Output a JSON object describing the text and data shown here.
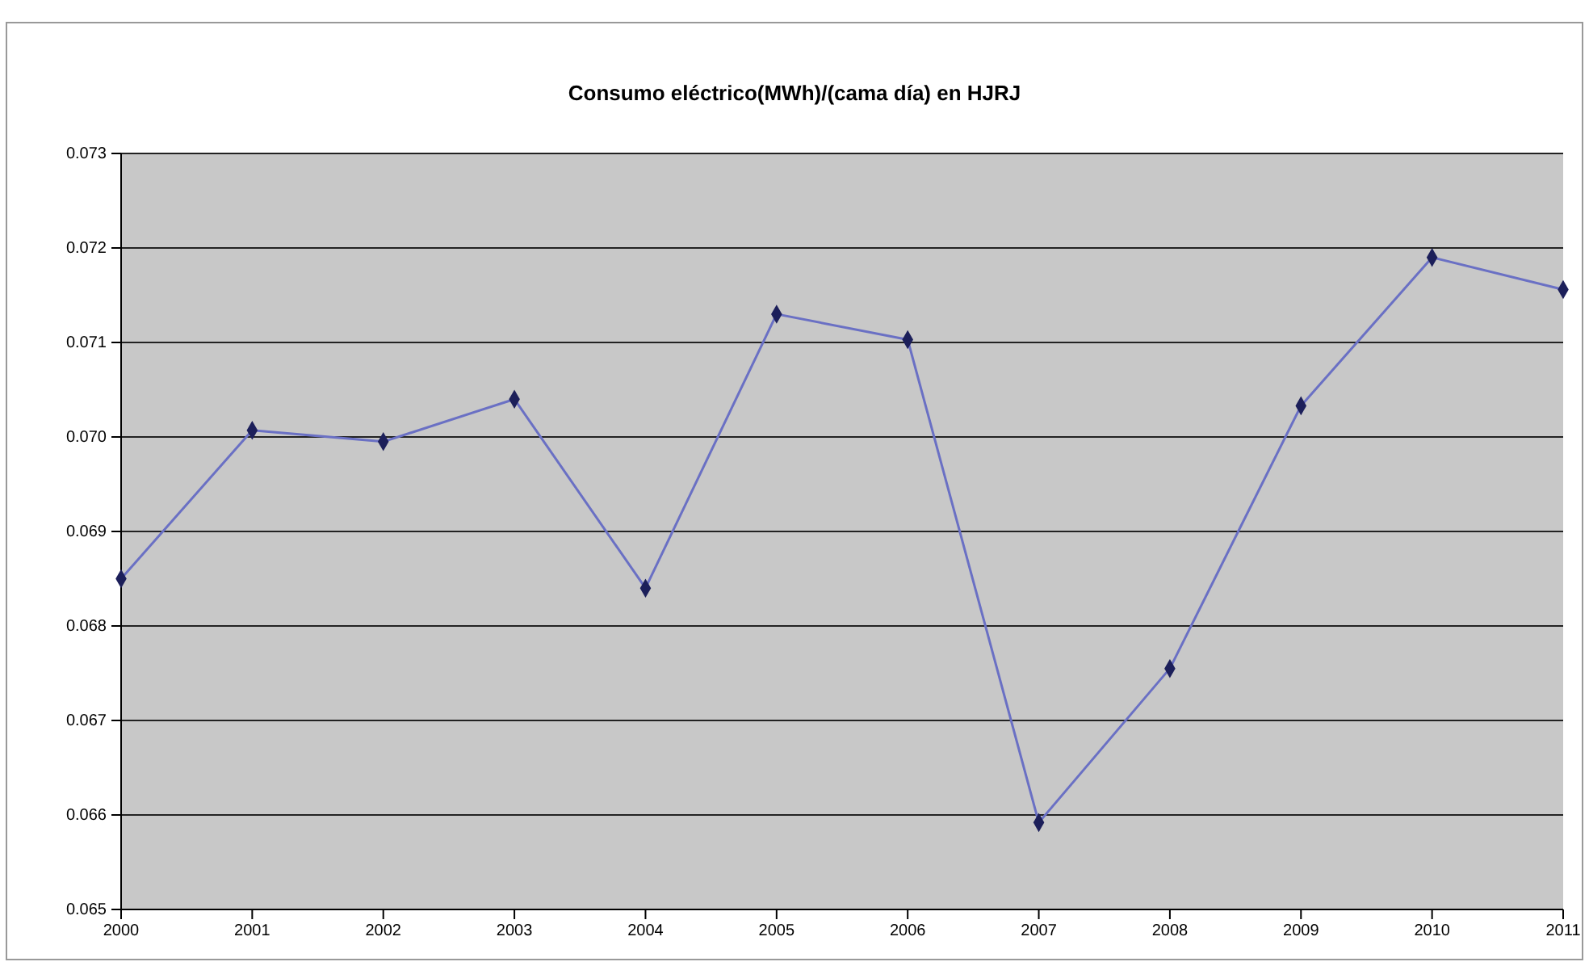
{
  "chart_data": {
    "type": "line",
    "title": "Consumo eléctrico(MWh)/(cama día) en HJRJ",
    "categories": [
      "2000",
      "2001",
      "2002",
      "2003",
      "2004",
      "2005",
      "2006",
      "2007",
      "2008",
      "2009",
      "2010",
      "2011"
    ],
    "series": [
      {
        "color": "#6a70c4",
        "values": [
          0.0685,
          0.07007,
          0.06995,
          0.0704,
          0.0684,
          0.0713,
          0.07103,
          0.06592,
          0.06755,
          0.07033,
          0.0719,
          0.07156
        ]
      }
    ],
    "ylim": [
      0.065,
      0.073
    ],
    "yticks": [
      0.065,
      0.066,
      0.067,
      0.068,
      0.069,
      {
        "value": 0.07,
        "label": "0.070"
      },
      0.071,
      0.072,
      0.073
    ],
    "grid": "y",
    "marker": "diamond",
    "line_style": "solid"
  }
}
